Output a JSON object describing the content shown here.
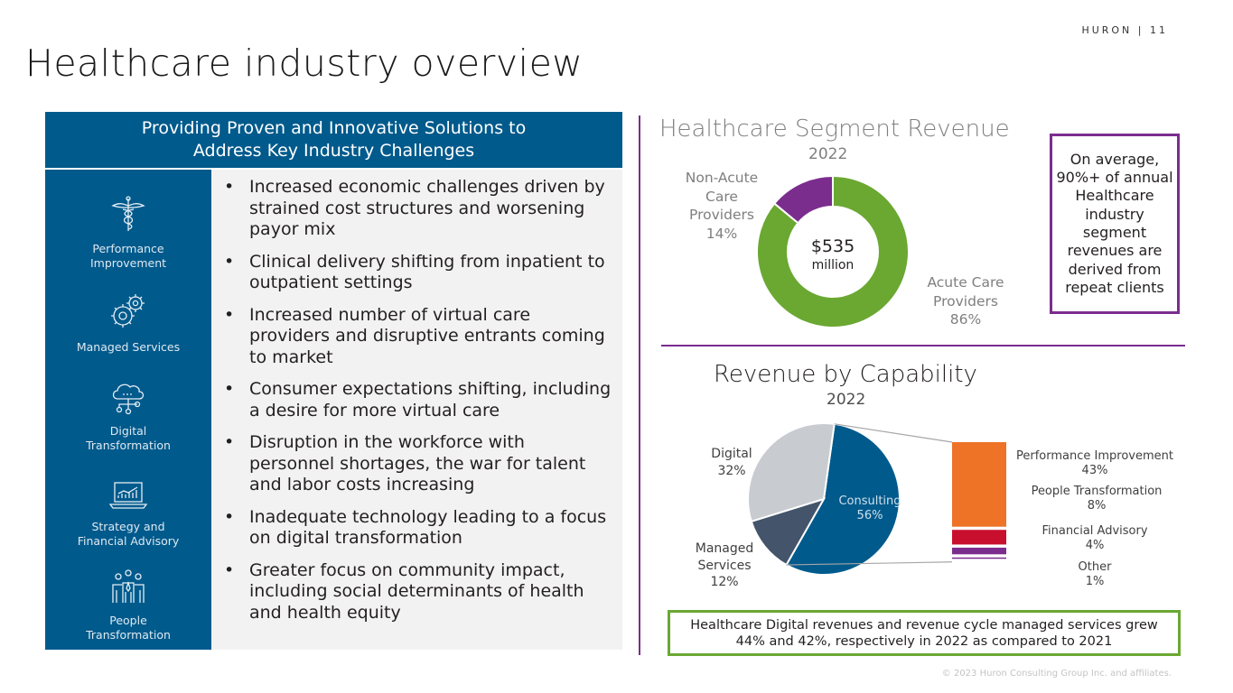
{
  "header": {
    "brand": "HURON | 11",
    "title": "Healthcare industry overview"
  },
  "panel": {
    "heading_line1": "Providing Proven and Innovative Solutions to",
    "heading_line2": "Address Key Industry Challenges",
    "capabilities": [
      {
        "line1": "Performance",
        "line2": "Improvement",
        "icon": "caduceus-icon"
      },
      {
        "line1": "Managed Services",
        "line2": "",
        "icon": "gears-icon"
      },
      {
        "line1": "Digital",
        "line2": "Transformation",
        "icon": "cloud-network-icon"
      },
      {
        "line1": "Strategy and",
        "line2": "Financial Advisory",
        "icon": "laptop-chart-icon"
      },
      {
        "line1": "People",
        "line2": "Transformation",
        "icon": "people-group-icon"
      }
    ],
    "bullets": [
      "Increased economic challenges driven by strained cost structures and worsening payor mix",
      "Clinical delivery shifting from inpatient to outpatient settings",
      "Increased number of virtual care providers and disruptive entrants coming to market",
      "Consumer expectations shifting, including a desire for more virtual care",
      "Disruption in the workforce with personnel shortages, the war for talent and labor costs increasing",
      "Inadequate technology leading to a focus on digital transformation",
      "Greater focus on community impact, including social determinants of health and health equity"
    ]
  },
  "callout": {
    "text": "On average, 90%+ of annual Healthcare industry segment revenues are derived from repeat clients",
    "border_color": "#7b2d8e"
  },
  "footnote": {
    "line1": "Healthcare Digital revenues and revenue cycle managed services grew",
    "line2": "44% and 42%, respectively in 2022 as compared to 2021",
    "border_color": "#6aa832"
  },
  "copyright": "© 2023 Huron Consulting Group Inc. and affiliates.",
  "chart_data": [
    {
      "type": "pie",
      "subtype": "donut",
      "title": "Healthcare Segment Revenue",
      "subtitle": "2022",
      "center_value": "$535",
      "center_unit": "million",
      "slices": [
        {
          "label": "Acute Care Providers",
          "label_lines": [
            "Acute Care",
            "Providers"
          ],
          "value": 86,
          "value_label": "86%",
          "color": "#6aa832"
        },
        {
          "label": "Non-Acute Care Providers",
          "label_lines": [
            "Non-Acute",
            "Care",
            "Providers"
          ],
          "value": 14,
          "value_label": "14%",
          "color": "#7b2d8e"
        }
      ]
    },
    {
      "type": "pie",
      "title": "Revenue by Capability",
      "subtitle": "2022",
      "slices": [
        {
          "label": "Consulting",
          "value": 56,
          "value_label": "56%",
          "color": "#005a8c"
        },
        {
          "label": "Managed Services",
          "label_lines": [
            "Managed",
            "Services"
          ],
          "value": 12,
          "value_label": "12%",
          "color": "#44546a"
        },
        {
          "label": "Digital",
          "value": 32,
          "value_label": "32%",
          "color": "#c8ccd1"
        }
      ]
    },
    {
      "type": "bar",
      "subtype": "stacked-breakdown",
      "parent": "Consulting",
      "categories": [
        "Performance Improvement",
        "People Transformation",
        "Financial Advisory",
        "Other"
      ],
      "values": [
        43,
        8,
        4,
        1
      ],
      "value_labels": [
        "43%",
        "8%",
        "4%",
        "1%"
      ],
      "colors": [
        "#ee7326",
        "#c8102e",
        "#7b2d8e",
        "#7b2d8e"
      ]
    }
  ]
}
